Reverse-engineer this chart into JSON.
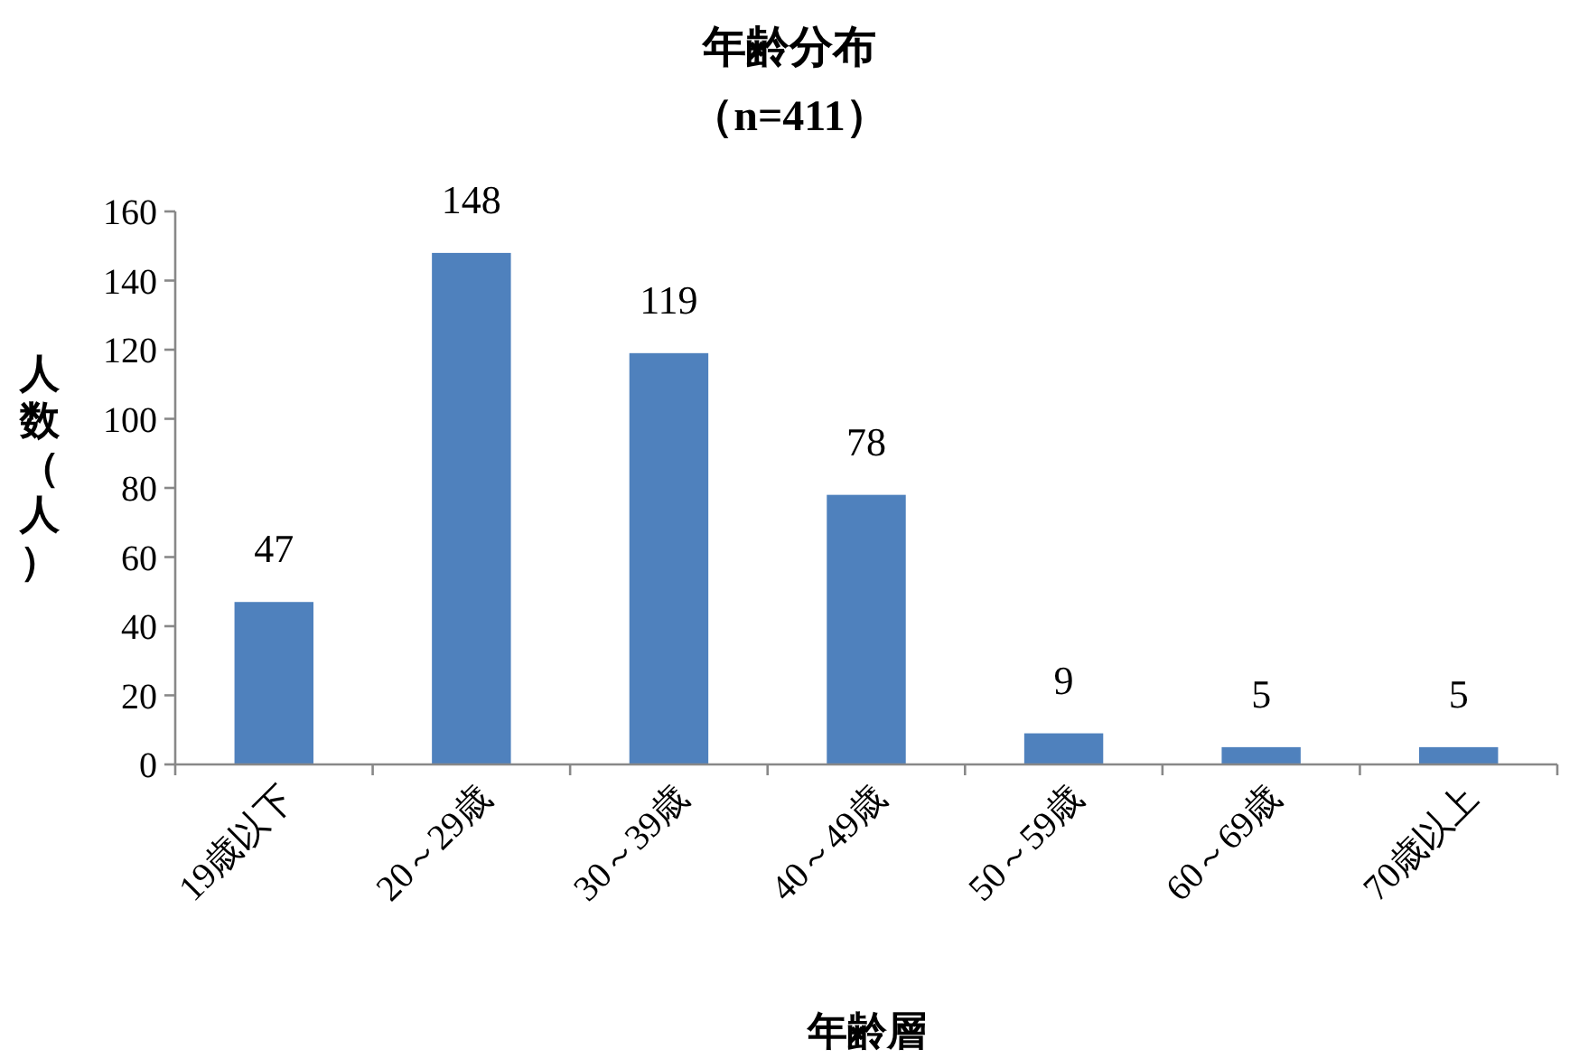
{
  "chart_data": {
    "type": "bar",
    "title": "年齢分布",
    "subtitle": "（n=411）",
    "xlabel": "年齢層",
    "ylabel": "人数（人）",
    "categories": [
      "19歳以下",
      "20～29歳",
      "30～39歳",
      "40～49歳",
      "50～59歳",
      "60～69歳",
      "70歳以上"
    ],
    "values": [
      47,
      148,
      119,
      78,
      9,
      5,
      5
    ],
    "color": "#4f81bd",
    "ylim": [
      0,
      160
    ],
    "yticks": [
      0,
      20,
      40,
      60,
      80,
      100,
      120,
      140,
      160
    ],
    "data_labels": true
  }
}
